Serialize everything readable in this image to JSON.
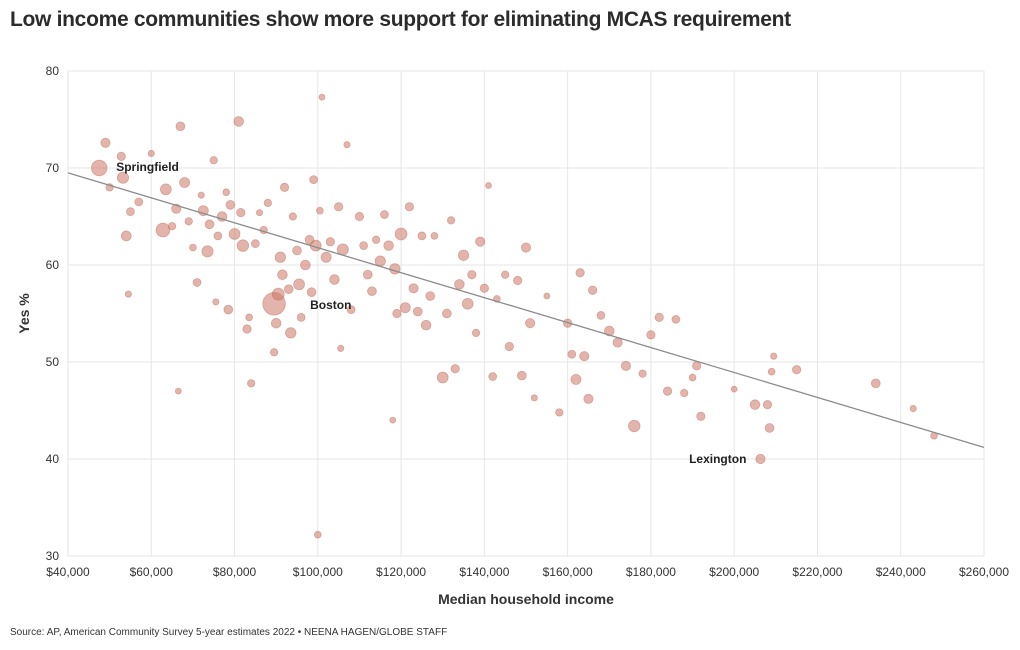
{
  "title": "Low income communities show more support for eliminating MCAS requirement",
  "source": "Source: AP, American Community Survey 5-year estimates 2022 • NEENA HAGEN/GLOBE STAFF",
  "chart_data": {
    "type": "scatter",
    "title": "Low income communities show more support for eliminating MCAS requirement",
    "xlabel": "Median household income",
    "ylabel": "Yes %",
    "xlim": [
      40000,
      260000
    ],
    "ylim": [
      30,
      80
    ],
    "xticks": [
      40000,
      60000,
      80000,
      100000,
      120000,
      140000,
      160000,
      180000,
      200000,
      220000,
      240000,
      260000
    ],
    "xtick_labels": [
      "$40,000",
      "$60,000",
      "$80,000",
      "$100,000",
      "$120,000",
      "$140,000",
      "$160,000",
      "$180,000",
      "$200,000",
      "$220,000",
      "$240,000",
      "$260,000"
    ],
    "yticks": [
      30,
      40,
      50,
      60,
      70,
      80
    ],
    "ytick_labels": [
      "30",
      "40",
      "50",
      "60",
      "70",
      "80"
    ],
    "grid": true,
    "point_color": "#cc7766",
    "trendline": {
      "x": [
        40000,
        260000
      ],
      "y": [
        69.5,
        41.2
      ]
    },
    "annotations": [
      {
        "label": "Springfield",
        "x": 47500,
        "y": 70.0
      },
      {
        "label": "Boston",
        "x": 89500,
        "y": 56.0
      },
      {
        "label": "Lexington",
        "x": 206300,
        "y": 40.0
      }
    ],
    "points": [
      {
        "x": 47500,
        "y": 70.0,
        "size": 6.2
      },
      {
        "x": 49000,
        "y": 72.6,
        "size": 2.2
      },
      {
        "x": 52800,
        "y": 71.2,
        "size": 1.8
      },
      {
        "x": 53200,
        "y": 69.0,
        "size": 3.2
      },
      {
        "x": 54000,
        "y": 63.0,
        "size": 2.5
      },
      {
        "x": 55000,
        "y": 65.5,
        "size": 1.6
      },
      {
        "x": 54500,
        "y": 57.0,
        "size": 1.0
      },
      {
        "x": 57000,
        "y": 66.5,
        "size": 1.6
      },
      {
        "x": 50000,
        "y": 68.0,
        "size": 1.4
      },
      {
        "x": 60000,
        "y": 71.5,
        "size": 1.0
      },
      {
        "x": 62800,
        "y": 63.6,
        "size": 4.8
      },
      {
        "x": 63500,
        "y": 67.8,
        "size": 3.0
      },
      {
        "x": 65000,
        "y": 64.0,
        "size": 1.4
      },
      {
        "x": 66000,
        "y": 65.8,
        "size": 2.2
      },
      {
        "x": 66500,
        "y": 47.0,
        "size": 0.9
      },
      {
        "x": 67000,
        "y": 74.3,
        "size": 2.0
      },
      {
        "x": 68000,
        "y": 68.5,
        "size": 2.6
      },
      {
        "x": 69000,
        "y": 64.5,
        "size": 1.4
      },
      {
        "x": 70000,
        "y": 61.8,
        "size": 1.2
      },
      {
        "x": 71000,
        "y": 58.2,
        "size": 1.6
      },
      {
        "x": 72000,
        "y": 67.2,
        "size": 1.0
      },
      {
        "x": 72500,
        "y": 65.6,
        "size": 2.6
      },
      {
        "x": 73500,
        "y": 61.4,
        "size": 3.2
      },
      {
        "x": 74000,
        "y": 64.2,
        "size": 2.0
      },
      {
        "x": 75000,
        "y": 70.8,
        "size": 1.4
      },
      {
        "x": 75500,
        "y": 56.2,
        "size": 1.0
      },
      {
        "x": 76000,
        "y": 63.0,
        "size": 1.6
      },
      {
        "x": 77000,
        "y": 65.0,
        "size": 2.4
      },
      {
        "x": 78000,
        "y": 67.5,
        "size": 1.2
      },
      {
        "x": 78500,
        "y": 55.4,
        "size": 2.0
      },
      {
        "x": 79000,
        "y": 66.2,
        "size": 2.0
      },
      {
        "x": 80000,
        "y": 63.2,
        "size": 3.0
      },
      {
        "x": 81000,
        "y": 74.8,
        "size": 2.4
      },
      {
        "x": 81500,
        "y": 65.4,
        "size": 1.8
      },
      {
        "x": 82000,
        "y": 62.0,
        "size": 3.4
      },
      {
        "x": 83000,
        "y": 53.4,
        "size": 1.8
      },
      {
        "x": 83500,
        "y": 54.6,
        "size": 1.2
      },
      {
        "x": 84000,
        "y": 47.8,
        "size": 1.4
      },
      {
        "x": 85000,
        "y": 62.2,
        "size": 1.6
      },
      {
        "x": 86000,
        "y": 65.4,
        "size": 1.0
      },
      {
        "x": 87000,
        "y": 63.6,
        "size": 1.4
      },
      {
        "x": 88000,
        "y": 66.4,
        "size": 1.4
      },
      {
        "x": 89500,
        "y": 56.0,
        "size": 13.0
      },
      {
        "x": 89500,
        "y": 51.0,
        "size": 1.4
      },
      {
        "x": 90000,
        "y": 54.0,
        "size": 2.4
      },
      {
        "x": 90500,
        "y": 57.0,
        "size": 3.6
      },
      {
        "x": 91000,
        "y": 60.8,
        "size": 2.8
      },
      {
        "x": 91500,
        "y": 59.0,
        "size": 2.4
      },
      {
        "x": 92000,
        "y": 68.0,
        "size": 1.8
      },
      {
        "x": 93000,
        "y": 57.5,
        "size": 2.0
      },
      {
        "x": 93500,
        "y": 53.0,
        "size": 2.8
      },
      {
        "x": 94000,
        "y": 65.0,
        "size": 1.4
      },
      {
        "x": 95000,
        "y": 61.5,
        "size": 2.0
      },
      {
        "x": 95500,
        "y": 58.0,
        "size": 3.0
      },
      {
        "x": 96000,
        "y": 54.6,
        "size": 1.6
      },
      {
        "x": 97000,
        "y": 60.0,
        "size": 2.4
      },
      {
        "x": 98000,
        "y": 62.6,
        "size": 2.0
      },
      {
        "x": 98500,
        "y": 57.2,
        "size": 2.0
      },
      {
        "x": 99000,
        "y": 68.8,
        "size": 1.6
      },
      {
        "x": 99500,
        "y": 62.0,
        "size": 3.0
      },
      {
        "x": 100000,
        "y": 32.2,
        "size": 1.2
      },
      {
        "x": 100500,
        "y": 65.6,
        "size": 1.2
      },
      {
        "x": 101000,
        "y": 77.3,
        "size": 0.9
      },
      {
        "x": 102000,
        "y": 60.8,
        "size": 2.6
      },
      {
        "x": 103000,
        "y": 62.4,
        "size": 1.8
      },
      {
        "x": 104000,
        "y": 58.5,
        "size": 2.4
      },
      {
        "x": 105000,
        "y": 66.0,
        "size": 1.8
      },
      {
        "x": 105500,
        "y": 51.4,
        "size": 1.0
      },
      {
        "x": 106000,
        "y": 61.6,
        "size": 3.2
      },
      {
        "x": 107000,
        "y": 72.4,
        "size": 1.0
      },
      {
        "x": 108000,
        "y": 55.4,
        "size": 1.6
      },
      {
        "x": 110000,
        "y": 65.0,
        "size": 1.8
      },
      {
        "x": 111000,
        "y": 62.0,
        "size": 1.6
      },
      {
        "x": 112000,
        "y": 59.0,
        "size": 2.0
      },
      {
        "x": 113000,
        "y": 57.3,
        "size": 2.0
      },
      {
        "x": 114000,
        "y": 62.6,
        "size": 1.4
      },
      {
        "x": 115000,
        "y": 60.4,
        "size": 2.8
      },
      {
        "x": 116000,
        "y": 65.2,
        "size": 1.6
      },
      {
        "x": 117000,
        "y": 62.0,
        "size": 2.4
      },
      {
        "x": 118000,
        "y": 44.0,
        "size": 0.9
      },
      {
        "x": 118500,
        "y": 59.6,
        "size": 2.8
      },
      {
        "x": 119000,
        "y": 55.0,
        "size": 1.8
      },
      {
        "x": 120000,
        "y": 63.2,
        "size": 3.6
      },
      {
        "x": 121000,
        "y": 55.6,
        "size": 2.6
      },
      {
        "x": 122000,
        "y": 66.0,
        "size": 1.8
      },
      {
        "x": 123000,
        "y": 57.6,
        "size": 2.2
      },
      {
        "x": 124000,
        "y": 55.2,
        "size": 2.0
      },
      {
        "x": 125000,
        "y": 63.0,
        "size": 1.6
      },
      {
        "x": 126000,
        "y": 53.8,
        "size": 2.4
      },
      {
        "x": 127000,
        "y": 56.8,
        "size": 2.0
      },
      {
        "x": 128000,
        "y": 63.0,
        "size": 1.2
      },
      {
        "x": 130000,
        "y": 48.4,
        "size": 3.0
      },
      {
        "x": 131000,
        "y": 55.0,
        "size": 2.0
      },
      {
        "x": 132000,
        "y": 64.6,
        "size": 1.4
      },
      {
        "x": 133000,
        "y": 49.3,
        "size": 1.8
      },
      {
        "x": 134000,
        "y": 58.0,
        "size": 2.4
      },
      {
        "x": 135000,
        "y": 61.0,
        "size": 2.8
      },
      {
        "x": 136000,
        "y": 56.0,
        "size": 3.0
      },
      {
        "x": 137000,
        "y": 59.0,
        "size": 1.8
      },
      {
        "x": 138000,
        "y": 53.0,
        "size": 1.4
      },
      {
        "x": 139000,
        "y": 62.4,
        "size": 2.2
      },
      {
        "x": 140000,
        "y": 57.6,
        "size": 1.8
      },
      {
        "x": 141000,
        "y": 68.2,
        "size": 0.9
      },
      {
        "x": 142000,
        "y": 48.5,
        "size": 1.6
      },
      {
        "x": 143000,
        "y": 56.5,
        "size": 1.2
      },
      {
        "x": 145000,
        "y": 59.0,
        "size": 1.4
      },
      {
        "x": 146000,
        "y": 51.6,
        "size": 1.8
      },
      {
        "x": 148000,
        "y": 58.4,
        "size": 1.8
      },
      {
        "x": 149000,
        "y": 48.6,
        "size": 2.0
      },
      {
        "x": 150000,
        "y": 61.8,
        "size": 2.2
      },
      {
        "x": 151000,
        "y": 54.0,
        "size": 2.2
      },
      {
        "x": 152000,
        "y": 46.3,
        "size": 1.0
      },
      {
        "x": 155000,
        "y": 56.8,
        "size": 0.9
      },
      {
        "x": 158000,
        "y": 44.8,
        "size": 1.4
      },
      {
        "x": 160000,
        "y": 54.0,
        "size": 1.8
      },
      {
        "x": 161000,
        "y": 50.8,
        "size": 1.6
      },
      {
        "x": 162000,
        "y": 48.2,
        "size": 2.6
      },
      {
        "x": 163000,
        "y": 59.2,
        "size": 1.8
      },
      {
        "x": 164000,
        "y": 50.6,
        "size": 2.2
      },
      {
        "x": 165000,
        "y": 46.2,
        "size": 2.2
      },
      {
        "x": 166000,
        "y": 57.4,
        "size": 1.8
      },
      {
        "x": 168000,
        "y": 54.8,
        "size": 1.6
      },
      {
        "x": 170000,
        "y": 53.2,
        "size": 2.4
      },
      {
        "x": 172000,
        "y": 52.0,
        "size": 2.2
      },
      {
        "x": 174000,
        "y": 49.6,
        "size": 2.2
      },
      {
        "x": 176000,
        "y": 43.4,
        "size": 3.4
      },
      {
        "x": 178000,
        "y": 48.8,
        "size": 1.4
      },
      {
        "x": 180000,
        "y": 52.8,
        "size": 1.8
      },
      {
        "x": 182000,
        "y": 54.6,
        "size": 1.8
      },
      {
        "x": 184000,
        "y": 47.0,
        "size": 1.8
      },
      {
        "x": 186000,
        "y": 54.4,
        "size": 1.6
      },
      {
        "x": 188000,
        "y": 46.8,
        "size": 1.4
      },
      {
        "x": 190000,
        "y": 48.4,
        "size": 1.2
      },
      {
        "x": 191000,
        "y": 49.6,
        "size": 1.8
      },
      {
        "x": 192000,
        "y": 44.4,
        "size": 1.8
      },
      {
        "x": 200000,
        "y": 47.2,
        "size": 0.9
      },
      {
        "x": 205000,
        "y": 45.6,
        "size": 2.4
      },
      {
        "x": 206300,
        "y": 40.0,
        "size": 2.2
      },
      {
        "x": 208000,
        "y": 45.6,
        "size": 1.8
      },
      {
        "x": 208500,
        "y": 43.2,
        "size": 2.0
      },
      {
        "x": 209000,
        "y": 49.0,
        "size": 1.2
      },
      {
        "x": 209500,
        "y": 50.6,
        "size": 1.0
      },
      {
        "x": 215000,
        "y": 49.2,
        "size": 1.8
      },
      {
        "x": 234000,
        "y": 47.8,
        "size": 2.0
      },
      {
        "x": 243000,
        "y": 45.2,
        "size": 1.0
      },
      {
        "x": 248000,
        "y": 42.4,
        "size": 1.2
      }
    ]
  }
}
